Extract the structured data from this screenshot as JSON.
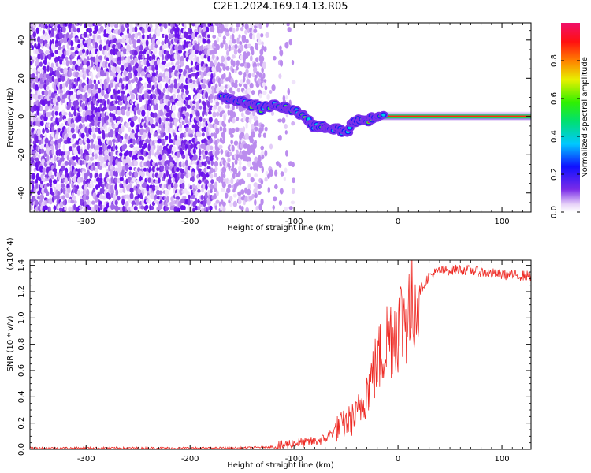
{
  "title": "C2E1.2024.169.14.13.R05",
  "chart_data": [
    {
      "type": "heatmap",
      "xlabel": "Height of straight line (km)",
      "ylabel": "Frequency (Hz)",
      "xlim": [
        -354,
        128
      ],
      "ylim": [
        -50,
        49
      ],
      "x_ticks": [
        -300,
        -200,
        -100,
        0,
        100
      ],
      "y_ticks": [
        -40,
        -20,
        0,
        20,
        40
      ],
      "colorbar": {
        "label": "Normalized spectral amplitude",
        "ticks": [
          "0.0",
          "0.2",
          "0.4",
          "0.6",
          "0.8"
        ],
        "range": [
          0,
          1
        ],
        "colormap": "rainbow (white-violet-blue-cyan-green-yellow-red-magenta)"
      },
      "signal_trace": {
        "x": [
          -170,
          -160,
          -150,
          -140,
          -130,
          -120,
          -110,
          -100,
          -90,
          -80,
          -70,
          -60,
          -50,
          -40,
          -30,
          -20,
          -10,
          0,
          20,
          40,
          60,
          80,
          100,
          128
        ],
        "freq": [
          10,
          9,
          8,
          6,
          4,
          6,
          5,
          4,
          -1,
          -5,
          -6,
          -6,
          -8,
          -2,
          -2,
          0,
          1,
          0,
          0,
          0,
          0,
          0,
          0,
          0
        ]
      },
      "noise_region": {
        "x": [
          -354,
          -130
        ],
        "level": "scattered 0.1-0.4"
      }
    },
    {
      "type": "line",
      "xlabel": "Height of straight line (km)",
      "ylabel": "SNR (10 * v/v)",
      "y_multiplier": "(x10^4)",
      "xlim": [
        -354,
        128
      ],
      "ylim": [
        0,
        1.44
      ],
      "x_ticks": [
        -300,
        -200,
        -100,
        0,
        100
      ],
      "y_ticks": [
        "0.0",
        "0.2",
        "0.4",
        "0.6",
        "0.8",
        "1.0",
        "1.2",
        "1.4"
      ],
      "color": "#ee2a24",
      "series": [
        {
          "x": [
            -354,
            -300,
            -250,
            -200,
            -150,
            -120,
            -110,
            -100,
            -90,
            -80,
            -70,
            -60,
            -50,
            -40,
            -30,
            -20,
            -10,
            0,
            10,
            20,
            30,
            40,
            60,
            80,
            100,
            128
          ],
          "y": [
            0.01,
            0.01,
            0.01,
            0.01,
            0.01,
            0.02,
            0.03,
            0.05,
            0.05,
            0.06,
            0.08,
            0.15,
            0.2,
            0.25,
            0.45,
            0.65,
            0.85,
            0.95,
            1.05,
            1.2,
            1.32,
            1.36,
            1.37,
            1.35,
            1.33,
            1.32
          ]
        }
      ]
    }
  ]
}
